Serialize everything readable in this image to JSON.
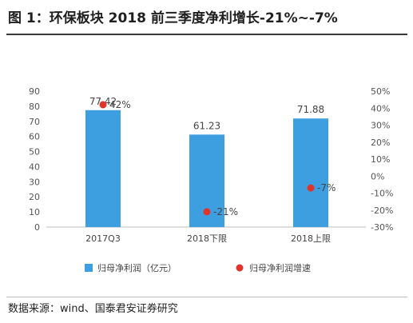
{
  "figure": {
    "title": "图 1：环保板块 2018 前三季度净利增长-21%~-7%",
    "source": "数据来源：wind、国泰君安证券研究"
  },
  "chart_data": {
    "type": "bar",
    "categories": [
      "2017Q3",
      "2018下限",
      "2018上限"
    ],
    "series": [
      {
        "name": "归母净利润（亿元）",
        "kind": "bar",
        "axis": "left",
        "color": "#3d9ee0",
        "values": [
          77.42,
          61.23,
          71.88
        ],
        "labels": [
          "77.42",
          "61.23",
          "71.88"
        ]
      },
      {
        "name": "归母净利润增速",
        "kind": "scatter",
        "axis": "right",
        "color": "#e0342b",
        "values": [
          42,
          -21,
          -7
        ],
        "labels": [
          "42%",
          "-21%",
          "-7%"
        ]
      }
    ],
    "y_left": {
      "min": 0,
      "max": 90,
      "step": 10,
      "ticks": [
        "0",
        "10",
        "20",
        "30",
        "40",
        "50",
        "60",
        "70",
        "80",
        "90"
      ]
    },
    "y_right": {
      "min": -30,
      "max": 50,
      "step": 10,
      "ticks": [
        "-30%",
        "-20%",
        "-10%",
        "0%",
        "10%",
        "20%",
        "30%",
        "40%",
        "50%"
      ]
    },
    "legend_position": "bottom",
    "grid": false
  }
}
